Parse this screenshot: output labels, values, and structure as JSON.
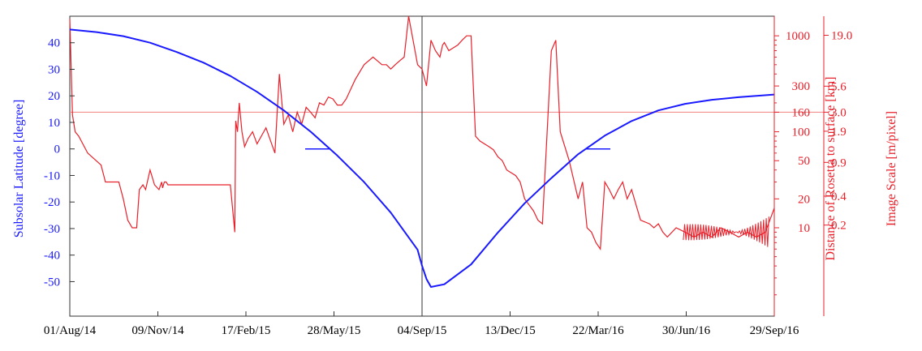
{
  "chart_data": {
    "type": "line",
    "title": "",
    "colors": {
      "latitude": "#1a1aff",
      "distance": "#e8202a",
      "reference_line": "#f08080",
      "axis": "#333333"
    },
    "xlabel": "",
    "x_tick_labels": [
      "01/Aug/14",
      "09/Nov/14",
      "17/Feb/15",
      "28/May/15",
      "04/Sep/15",
      "13/Dec/15",
      "22/Mar/16",
      "30/Jun/16",
      "29/Sep/16"
    ],
    "x_range": [
      "01/Aug/14",
      "29/Sep/16"
    ],
    "y_left": {
      "label": "Subsolar Latitude [degree]",
      "range": [
        -63,
        50
      ],
      "ticks": [
        "40",
        "30",
        "20",
        "10",
        "0",
        "-10",
        "-20",
        "-30",
        "-40",
        "-50"
      ]
    },
    "y_right_distance": {
      "label": "Distance of Rosetta to surface [km]",
      "scale": "log",
      "ticks": [
        "1000",
        "300",
        "160",
        "100",
        "50",
        "20",
        "10"
      ]
    },
    "y_right_scale": {
      "label": "Image Scale  [m/pixel]",
      "ticks": [
        "19.0",
        "5.6",
        "3.0",
        "1.9",
        "0.9",
        "0.4",
        "0.2"
      ]
    },
    "annotations": {
      "equinox_markers_degree": 0,
      "reference_distance_km": 160
    },
    "series": [
      {
        "key": "subsolar_latitude",
        "x_days": [
          0,
          30,
          60,
          90,
          120,
          150,
          180,
          210,
          240,
          270,
          300,
          330,
          360,
          390,
          395,
          400,
          405,
          420,
          450,
          480,
          510,
          540,
          570,
          600,
          630,
          660,
          690,
          720,
          750,
          790
        ],
        "values": [
          45,
          44,
          42.5,
          40,
          36.5,
          32.5,
          27.5,
          21.5,
          14.5,
          6.5,
          -2.5,
          -12.5,
          -24,
          -38,
          -44,
          -49,
          -52,
          -51,
          -43.5,
          -31.5,
          -20.5,
          -11,
          -2,
          5,
          10.5,
          14.5,
          17,
          18.5,
          19.5,
          20.5
        ]
      },
      {
        "key": "distance_km",
        "x_days": [
          0,
          3,
          6,
          10,
          20,
          35,
          40,
          45,
          55,
          60,
          65,
          70,
          75,
          78,
          82,
          85,
          90,
          95,
          100,
          103,
          104,
          106,
          108,
          110,
          120,
          125,
          130,
          135,
          140,
          150,
          160,
          170,
          180,
          185,
          186,
          188,
          190,
          193,
          196,
          200,
          205,
          210,
          220,
          230,
          235,
          240,
          245,
          250,
          255,
          260,
          265,
          270,
          275,
          280,
          285,
          290,
          295,
          300,
          305,
          310,
          320,
          330,
          340,
          350,
          355,
          360,
          365,
          370,
          375,
          380,
          390,
          395,
          400,
          405,
          410,
          415,
          418,
          420,
          425,
          430,
          435,
          440,
          445,
          450,
          455,
          460,
          470,
          475,
          480,
          485,
          490,
          500,
          505,
          510,
          520,
          525,
          530,
          540,
          545,
          550,
          560,
          570,
          575,
          580,
          585,
          590,
          595,
          600,
          605,
          610,
          615,
          620,
          625,
          630,
          640,
          650,
          655,
          660,
          665,
          670,
          680,
          690,
          700,
          710,
          720,
          730,
          740,
          750,
          760,
          770,
          780,
          785,
          790
        ],
        "values": [
          1500,
          150,
          100,
          90,
          60,
          45,
          30,
          30,
          30,
          20,
          12,
          10,
          10,
          25,
          28,
          25,
          40,
          28,
          25,
          30,
          26,
          30,
          30,
          28,
          28,
          28,
          28,
          28,
          28,
          28,
          28,
          28,
          28,
          9,
          130,
          100,
          200,
          100,
          70,
          85,
          100,
          75,
          110,
          60,
          400,
          120,
          150,
          100,
          160,
          120,
          180,
          160,
          140,
          200,
          190,
          230,
          220,
          190,
          190,
          220,
          350,
          500,
          600,
          500,
          500,
          450,
          500,
          550,
          600,
          1600,
          500,
          450,
          300,
          900,
          700,
          600,
          800,
          850,
          700,
          750,
          800,
          900,
          1000,
          1000,
          90,
          80,
          70,
          65,
          55,
          50,
          40,
          35,
          30,
          20,
          15,
          12,
          11,
          700,
          900,
          100,
          50,
          20,
          30,
          10,
          9,
          7,
          6,
          30,
          25,
          20,
          25,
          30,
          20,
          25,
          12,
          11,
          10,
          11,
          9,
          8,
          10,
          9,
          8,
          9,
          8,
          10,
          9,
          8,
          9,
          8,
          9,
          12,
          16
        ]
      }
    ]
  }
}
